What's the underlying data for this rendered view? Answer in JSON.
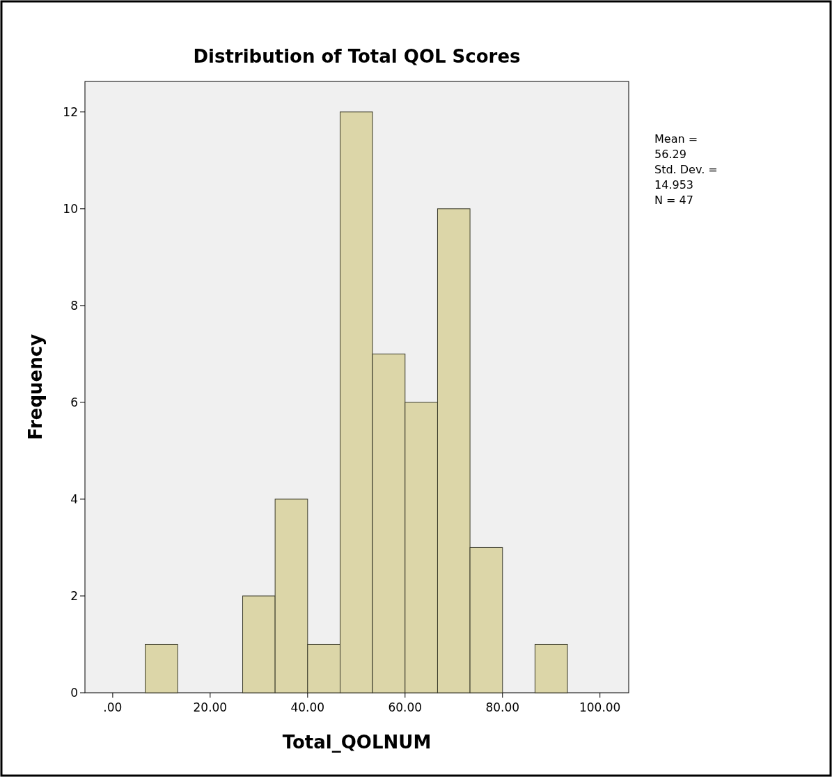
{
  "chart_data": {
    "type": "histogram",
    "title": "Distribution of Total QOL Scores",
    "xlabel": "Total_QOLNUM",
    "ylabel": "Frequency",
    "bins": [
      6.67,
      13.33,
      20,
      26.67,
      33.33,
      40,
      46.67,
      53.33,
      60,
      66.67,
      73.33,
      80,
      86.67,
      93.33
    ],
    "values": [
      1,
      0,
      0,
      2,
      4,
      1,
      12,
      7,
      6,
      10,
      3,
      0,
      1
    ],
    "color": "#dcd6a8",
    "xlim": [
      -5.7,
      105.9
    ],
    "xticks": [
      {
        "value": 0,
        "label": ".00"
      },
      {
        "value": 20,
        "label": "20.00"
      },
      {
        "value": 40,
        "label": "40.00"
      },
      {
        "value": 60,
        "label": "60.00"
      },
      {
        "value": 80,
        "label": "80.00"
      },
      {
        "value": 100,
        "label": "100.00"
      }
    ],
    "ylim": [
      0,
      12.63
    ],
    "yticks": [
      0,
      2,
      4,
      6,
      8,
      10,
      12
    ],
    "grid": false,
    "annotations": [
      "Mean =\n56.29",
      "Std. Dev. =\n14.953",
      "N = 47"
    ]
  }
}
